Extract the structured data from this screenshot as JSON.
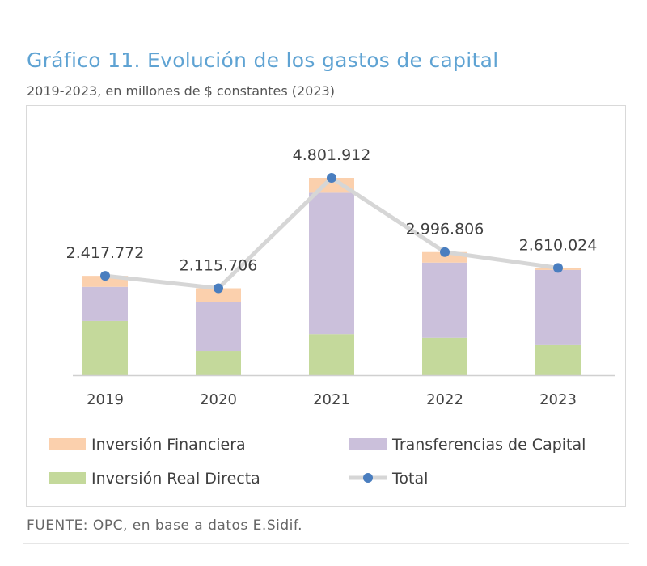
{
  "chart_data": {
    "type": "bar",
    "title": "Gráfico 11. Evolución de los gastos de capital",
    "subtitle": "2019-2023, en millones de $ constantes (2023)",
    "categories": [
      "2019",
      "2020",
      "2021",
      "2022",
      "2023"
    ],
    "series": [
      {
        "name": "Inversión Real Directa",
        "values": [
          1320000,
          590000,
          1000000,
          910000,
          730000
        ],
        "color": "#c4d99b"
      },
      {
        "name": "Transferencias de Capital",
        "values": [
          830000,
          1200000,
          3440000,
          1830000,
          1830000
        ],
        "color": "#cbc0db"
      },
      {
        "name": "Inversión Financiera",
        "values": [
          267772,
          325706,
          361912,
          256806,
          50024
        ],
        "color": "#fbd0ad"
      }
    ],
    "total": {
      "name": "Total",
      "values": [
        2417772,
        2115706,
        4801912,
        2996806,
        2610024
      ],
      "labels": [
        "2.417.772",
        "2.115.706",
        "4.801.912",
        "2.996.806",
        "2.610.024"
      ],
      "line_color": "#d6d6d6",
      "marker_color": "#4a7ebf"
    },
    "stacked": true,
    "legend_order": [
      "Inversión Financiera",
      "Transferencias de Capital",
      "Inversión Real Directa",
      "Total"
    ],
    "legend_placement": "bottom",
    "grid": false,
    "ylim": [
      0,
      4801912
    ],
    "source": "FUENTE: OPC, en base a datos E.Sidif."
  }
}
